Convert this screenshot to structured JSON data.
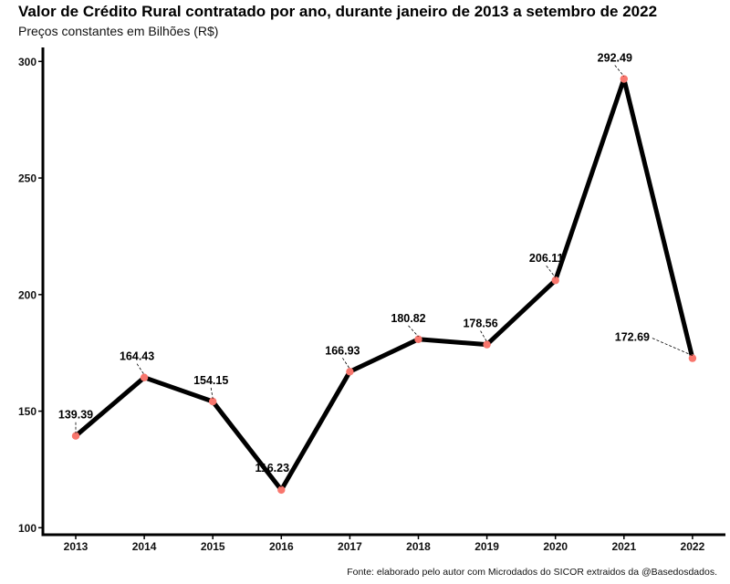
{
  "title": "Valor de Crédito Rural contratado por ano, durante janeiro de 2013 a setembro de 2022",
  "subtitle": "Preços constantes em Bilhões (R$)",
  "caption": "Fonte: elaborado pelo autor com Microdados do SICOR extraidos da @Basedosdados.",
  "colors": {
    "line": "#000000",
    "point": "#f8766d",
    "axis": "#000000"
  },
  "chart_data": {
    "type": "line",
    "title": "Valor de Crédito Rural contratado por ano, durante janeiro de 2013 a setembro de 2022",
    "subtitle": "Preços constantes em Bilhões (R$)",
    "xlabel": "",
    "ylabel": "",
    "x": [
      "2013",
      "2014",
      "2015",
      "2016",
      "2017",
      "2018",
      "2019",
      "2020",
      "2021",
      "2022"
    ],
    "values": [
      139.39,
      164.43,
      154.15,
      116.23,
      166.93,
      180.82,
      178.56,
      206.11,
      292.49,
      172.69
    ],
    "labels": [
      "139.39",
      "164.43",
      "154.15",
      "116.23",
      "166.93",
      "180.82",
      "178.56",
      "206.11",
      "292.49",
      "172.69"
    ],
    "yticks": [
      100,
      150,
      200,
      250,
      300
    ],
    "ylim": [
      97,
      306
    ],
    "grid": false,
    "legend": "none"
  }
}
